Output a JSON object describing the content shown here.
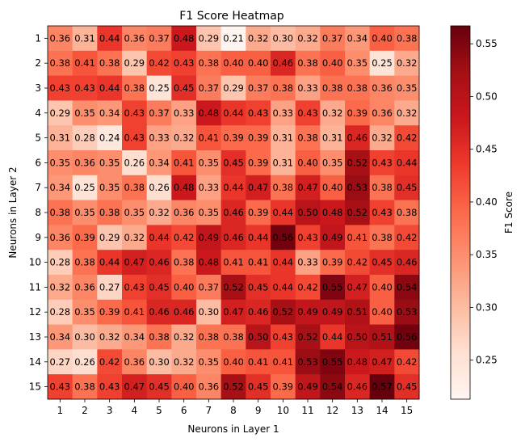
{
  "chart_data": {
    "type": "heatmap",
    "title": "F1 Score Heatmap",
    "xlabel": "Neurons in Layer 1",
    "ylabel": "Neurons in Layer 2",
    "x_categories": [
      "1",
      "2",
      "3",
      "4",
      "5",
      "6",
      "7",
      "8",
      "9",
      "10",
      "11",
      "12",
      "13",
      "14",
      "15"
    ],
    "y_categories": [
      "1",
      "2",
      "3",
      "4",
      "5",
      "6",
      "7",
      "8",
      "9",
      "10",
      "11",
      "12",
      "13",
      "14",
      "15"
    ],
    "values": [
      [
        0.36,
        0.31,
        0.44,
        0.36,
        0.37,
        0.48,
        0.29,
        0.21,
        0.32,
        0.3,
        0.32,
        0.37,
        0.34,
        0.4,
        0.38
      ],
      [
        0.38,
        0.41,
        0.38,
        0.29,
        0.42,
        0.43,
        0.38,
        0.4,
        0.4,
        0.46,
        0.38,
        0.4,
        0.35,
        0.25,
        0.32
      ],
      [
        0.43,
        0.43,
        0.44,
        0.38,
        0.25,
        0.45,
        0.37,
        0.29,
        0.37,
        0.38,
        0.33,
        0.38,
        0.38,
        0.36,
        0.35
      ],
      [
        0.29,
        0.35,
        0.34,
        0.43,
        0.37,
        0.33,
        0.48,
        0.44,
        0.43,
        0.33,
        0.43,
        0.32,
        0.39,
        0.36,
        0.32
      ],
      [
        0.31,
        0.28,
        0.24,
        0.43,
        0.33,
        0.32,
        0.41,
        0.39,
        0.39,
        0.31,
        0.38,
        0.31,
        0.46,
        0.32,
        0.42
      ],
      [
        0.35,
        0.36,
        0.35,
        0.26,
        0.34,
        0.41,
        0.35,
        0.45,
        0.39,
        0.31,
        0.4,
        0.35,
        0.52,
        0.43,
        0.44
      ],
      [
        0.34,
        0.25,
        0.35,
        0.38,
        0.26,
        0.48,
        0.33,
        0.44,
        0.47,
        0.38,
        0.47,
        0.4,
        0.53,
        0.38,
        0.45
      ],
      [
        0.38,
        0.35,
        0.38,
        0.35,
        0.32,
        0.36,
        0.35,
        0.46,
        0.39,
        0.44,
        0.5,
        0.48,
        0.52,
        0.43,
        0.38
      ],
      [
        0.36,
        0.39,
        0.29,
        0.32,
        0.44,
        0.42,
        0.49,
        0.46,
        0.44,
        0.56,
        0.43,
        0.49,
        0.41,
        0.38,
        0.42
      ],
      [
        0.28,
        0.38,
        0.44,
        0.47,
        0.46,
        0.38,
        0.48,
        0.41,
        0.41,
        0.44,
        0.33,
        0.39,
        0.42,
        0.45,
        0.46
      ],
      [
        0.32,
        0.36,
        0.27,
        0.43,
        0.45,
        0.4,
        0.37,
        0.52,
        0.45,
        0.44,
        0.42,
        0.55,
        0.47,
        0.4,
        0.54
      ],
      [
        0.28,
        0.35,
        0.39,
        0.41,
        0.46,
        0.46,
        0.3,
        0.47,
        0.46,
        0.52,
        0.49,
        0.49,
        0.51,
        0.4,
        0.53
      ],
      [
        0.34,
        0.3,
        0.32,
        0.34,
        0.38,
        0.32,
        0.38,
        0.38,
        0.5,
        0.43,
        0.52,
        0.44,
        0.5,
        0.51,
        0.56
      ],
      [
        0.27,
        0.26,
        0.42,
        0.36,
        0.3,
        0.32,
        0.35,
        0.4,
        0.41,
        0.41,
        0.53,
        0.55,
        0.48,
        0.47,
        0.42
      ],
      [
        0.43,
        0.38,
        0.43,
        0.47,
        0.45,
        0.4,
        0.36,
        0.52,
        0.45,
        0.39,
        0.49,
        0.54,
        0.46,
        0.57,
        0.45
      ]
    ],
    "colormap": "Reds",
    "value_range": [
      0.213,
      0.567
    ],
    "colorbar": {
      "label": "F1 Score",
      "ticks": [
        0.25,
        0.3,
        0.35,
        0.4,
        0.45,
        0.5,
        0.55
      ],
      "tick_labels": [
        "0.25",
        "0.30",
        "0.35",
        "0.40",
        "0.45",
        "0.50",
        "0.55"
      ]
    },
    "grid": false
  }
}
